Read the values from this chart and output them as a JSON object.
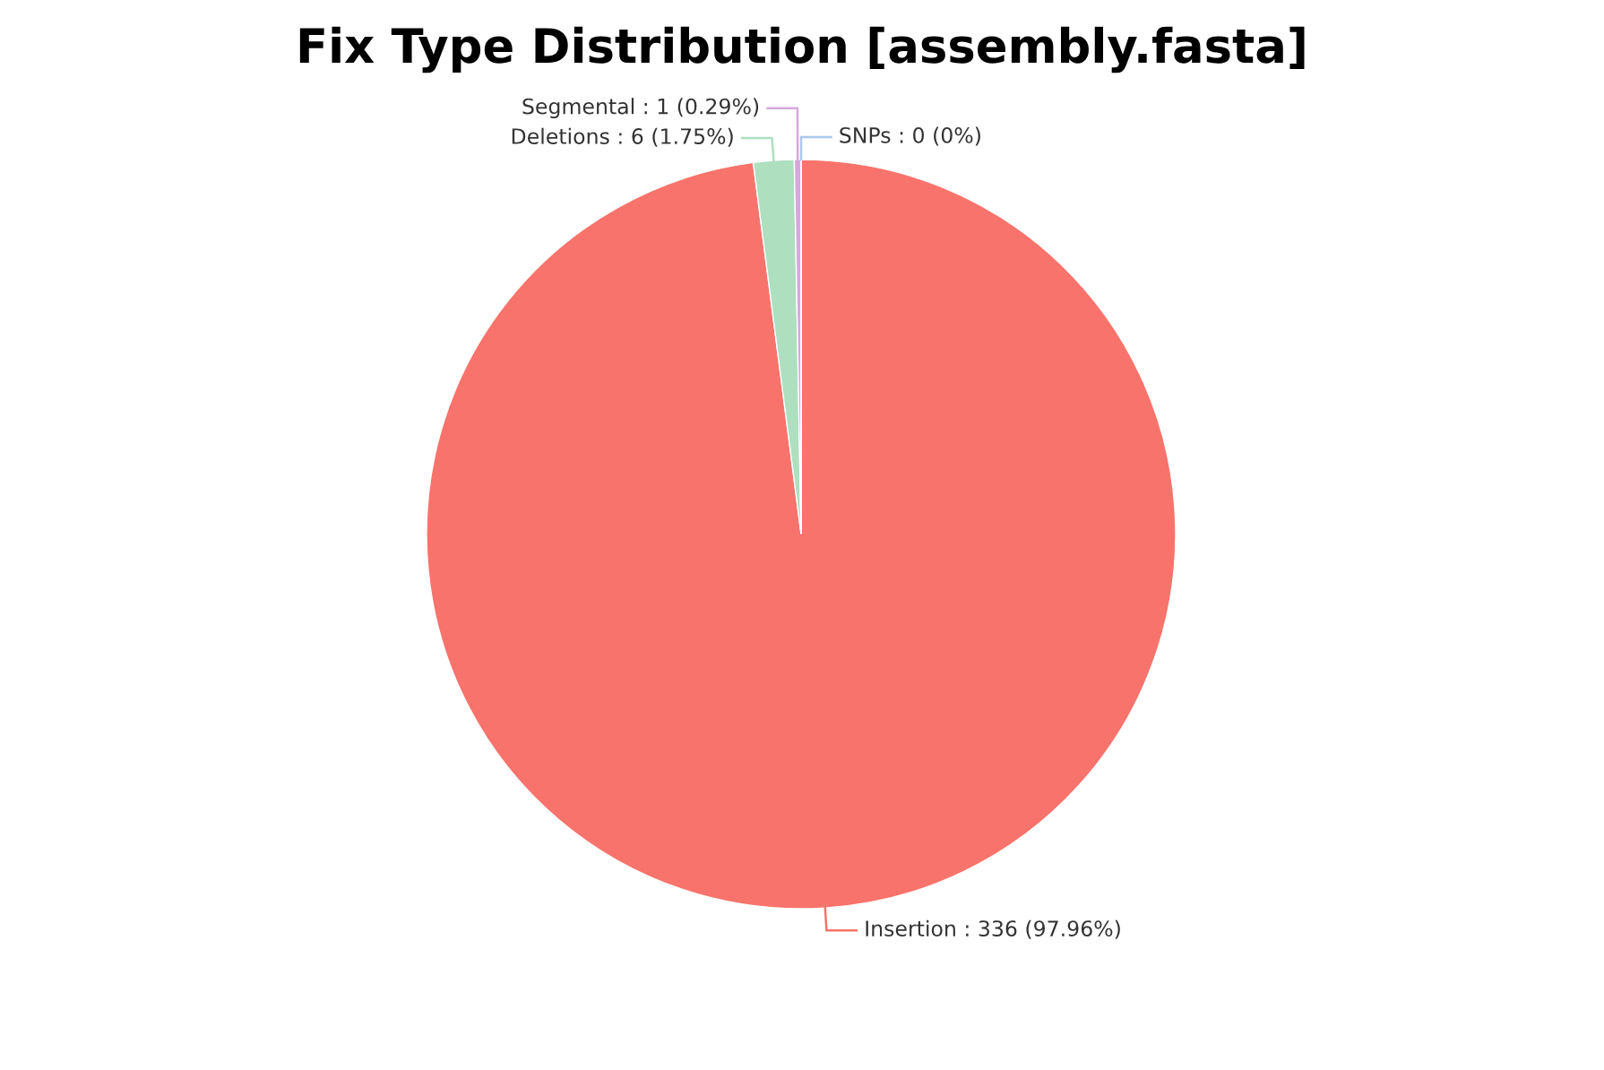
{
  "chart_data": {
    "type": "pie",
    "title": "Fix Type Distribution [assembly.fasta]",
    "categories": [
      "Insertion : 336 (97.96%)",
      "Deletions : 6 (1.75%)",
      "Segmental : 1 (0.29%)",
      "SNPs : 0 (0%)"
    ],
    "values": [
      336,
      6,
      1,
      0
    ],
    "colors": [
      "#f8736b",
      "#aedfbf",
      "#d6a8dc",
      "#aac8ef"
    ]
  }
}
